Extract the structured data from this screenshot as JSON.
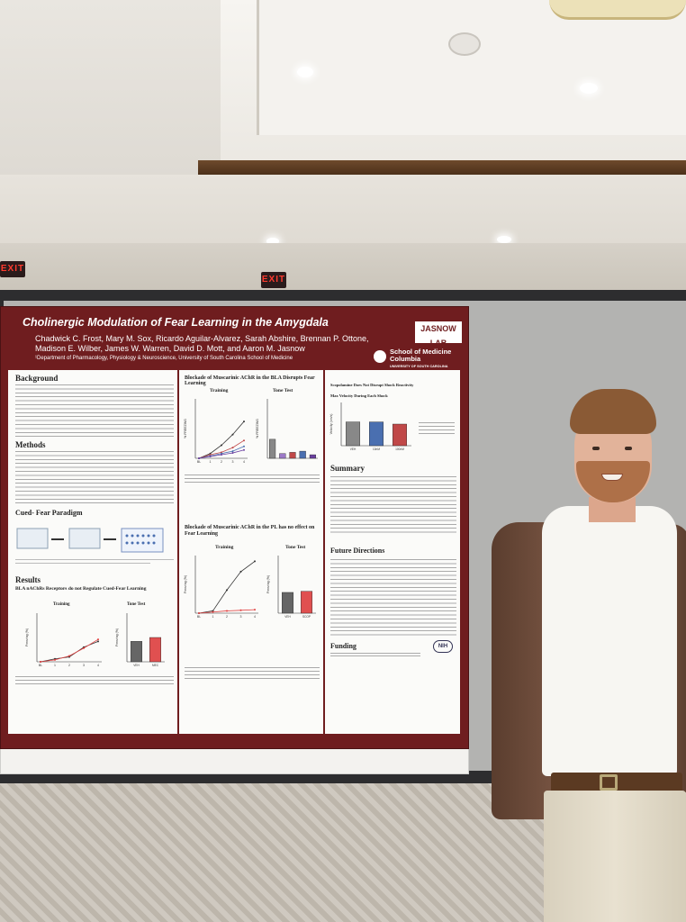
{
  "scene": {
    "exit_signs": [
      "EXIT",
      "EXIT"
    ]
  },
  "poster": {
    "title": "Cholinergic Modulation of Fear Learning in the Amygdala",
    "authors": "Chadwick C. Frost, Mary M. Sox, Ricardo Aguilar-Alvarez, Sarah Abshire, Brennan P. Ottone, Madison E. Wilber, James W. Warren, David D. Mott, and Aaron M. Jasnow",
    "affiliation": "¹Department of Pharmacology, Physiology & Neuroscience, University of South Carolina School of Medicine",
    "lab_logo": "JASNOW LAB",
    "institution": {
      "name": "School of Medicine Columbia",
      "sub": "UNIVERSITY OF SOUTH CAROLINA"
    },
    "sections": {
      "background": "Background",
      "methods": "Methods",
      "cued_fear": "Cued- Fear Paradigm",
      "results": "Results",
      "results_sub": "BLA nAChRs Receptors do not Regulate Cued-Fear Learning",
      "summary": "Summary",
      "future": "Future Directions",
      "funding": "Funding"
    },
    "figures": {
      "bla_title": "Blockade of Muscarinic AChR in the BLA Disrupts Fear Learning",
      "pl_title": "Blockade of Muscarinic AChR in the PL has no effect on Fear Learning",
      "scop_title": "Scopolamine Does Not Disrupt Shock Reactivity",
      "max_velocity": "Max Velocity During Each Shock",
      "training": "Training",
      "tone_test": "Tone Test",
      "freezing_label": "% FREEZING",
      "freezing_label2": "Freezing (%)",
      "tones_label": "Tones",
      "velocity_label": "Velocity (cm/s)",
      "pl_legend": [
        "Vehicle",
        "100nM"
      ],
      "pl_groups": [
        "VEH",
        "SCOP"
      ],
      "nachr_groups": [
        "VEH",
        "MEC"
      ],
      "velocity_groups": [
        "VEH",
        "10nM",
        "100nM"
      ],
      "x_ticks": [
        "BL",
        "1",
        "2",
        "3",
        "4"
      ],
      "nih_label": "NIH"
    }
  }
}
